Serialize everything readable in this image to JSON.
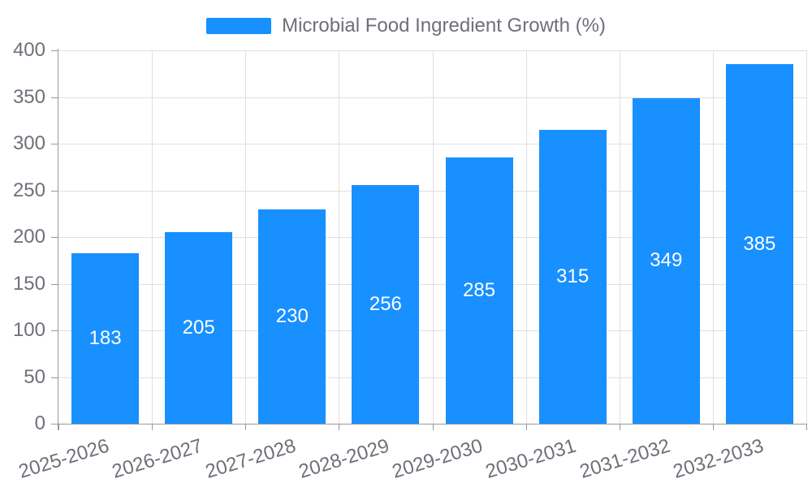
{
  "chart_data": {
    "type": "bar",
    "title": "Microbial Food Ingredient Growth (%)",
    "legend": {
      "label": "Microbial Food Ingredient Growth (%)",
      "position": "top"
    },
    "categories": [
      "2025-2026",
      "2026-2027",
      "2027-2028",
      "2028-2029",
      "2029-2030",
      "2030-2031",
      "2031-2032",
      "2032-2033"
    ],
    "series": [
      {
        "name": "Microbial Food Ingredient Growth (%)",
        "values": [
          183,
          205,
          230,
          256,
          285,
          315,
          349,
          385
        ]
      }
    ],
    "xlabel": "",
    "ylabel": "",
    "ylim": [
      0,
      400
    ],
    "yticks": [
      0,
      50,
      100,
      150,
      200,
      250,
      300,
      350,
      400
    ],
    "grid": true,
    "value_labels": "inside-center",
    "x_label_rotation_deg": -17,
    "colors": {
      "bar": "#1890ff",
      "bar_label": "#ffffff",
      "axis_text": "#6e7079",
      "axis_line": "#999999",
      "gridline": "#e0e0e0",
      "background": "#ffffff"
    }
  }
}
